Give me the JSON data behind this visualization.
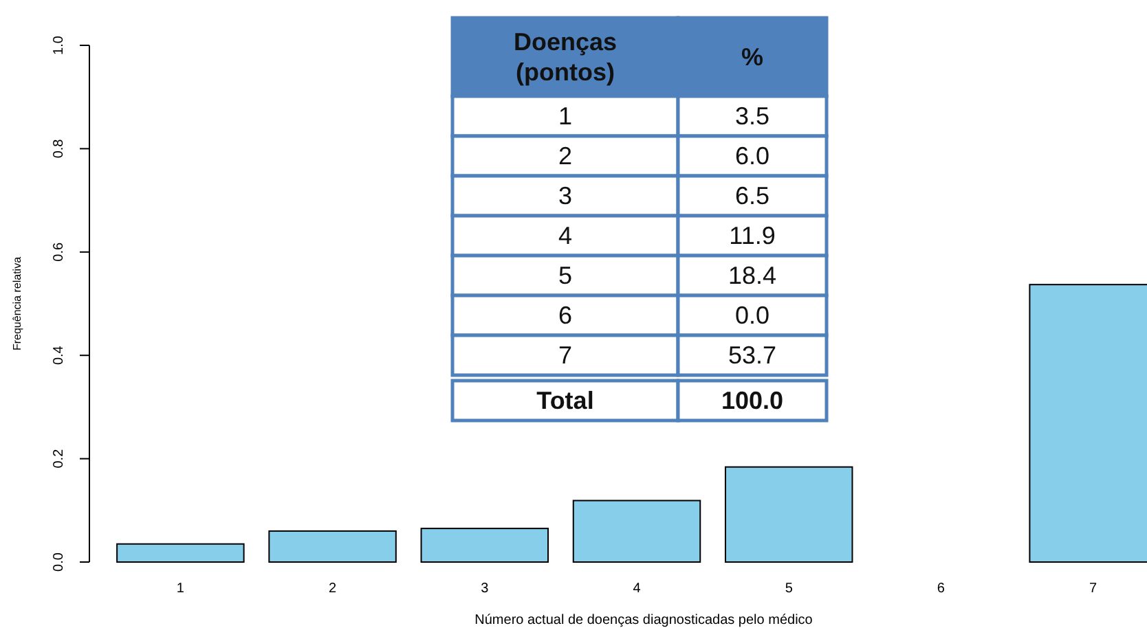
{
  "chart_data": {
    "type": "bar",
    "xlabel": "Número actual de doenças diagnosticadas pelo médico",
    "ylabel": "Frequência relativa",
    "categories": [
      "1",
      "2",
      "3",
      "4",
      "5",
      "6",
      "7"
    ],
    "values": [
      0.035,
      0.06,
      0.065,
      0.119,
      0.184,
      0.0,
      0.537
    ],
    "color": "#87ceeb",
    "ylim": [
      0,
      1
    ],
    "yticks": [
      {
        "value": 0,
        "label": "0.0"
      },
      {
        "value": 0.2,
        "label": "0.2"
      },
      {
        "value": 0.4,
        "label": "0.4"
      },
      {
        "value": 0.6,
        "label": "0.6"
      },
      {
        "value": 0.8,
        "label": "0.8"
      },
      {
        "value": 1,
        "label": "1.0"
      }
    ],
    "grid": false,
    "annotations": [
      "Doenças (pontos)",
      "%",
      "1",
      "3.5",
      "2",
      "6.0",
      "3",
      "6.5",
      "4",
      "11.9",
      "5",
      "18.4",
      "6",
      "0.0",
      "7",
      "53.7",
      "Total",
      "100.0"
    ]
  }
}
